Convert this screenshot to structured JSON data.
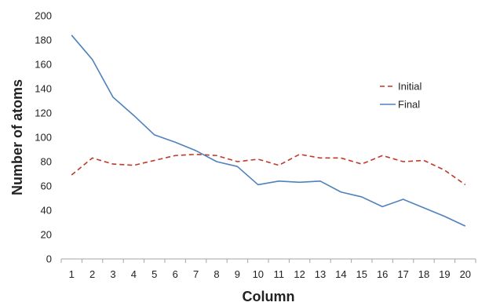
{
  "chart_data": {
    "type": "line",
    "title": "",
    "xlabel": "Column",
    "ylabel": "Number of atoms",
    "x": [
      1,
      2,
      3,
      4,
      5,
      6,
      7,
      8,
      9,
      10,
      11,
      12,
      13,
      14,
      15,
      16,
      17,
      18,
      19,
      20
    ],
    "ylim": [
      0,
      200
    ],
    "yticks": [
      0,
      20,
      40,
      60,
      80,
      100,
      120,
      140,
      160,
      180,
      200
    ],
    "grid": false,
    "legend_position": "right",
    "series": [
      {
        "name": "Initial",
        "style": "dashed",
        "color": "#c0392b",
        "values": [
          69,
          83,
          78,
          77,
          81,
          85,
          86,
          85,
          80,
          82,
          77,
          86,
          83,
          83,
          78,
          85,
          80,
          81,
          73,
          61
        ]
      },
      {
        "name": "Final",
        "style": "solid",
        "color": "#4f81bd",
        "values": [
          184,
          164,
          133,
          118,
          102,
          96,
          89,
          80,
          76,
          61,
          64,
          63,
          64,
          55,
          51,
          43,
          49,
          42,
          35,
          27
        ]
      }
    ]
  }
}
